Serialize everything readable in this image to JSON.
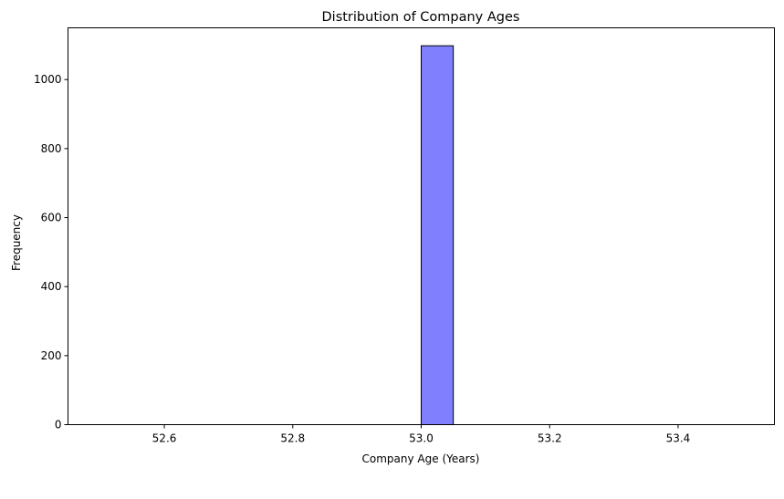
{
  "chart_data": {
    "type": "bar",
    "title": "Distribution of Company Ages",
    "xlabel": "Company Age (Years)",
    "ylabel": "Frequency",
    "xlim": [
      52.45,
      53.55
    ],
    "ylim": [
      0,
      1150
    ],
    "x_ticks": [
      52.6,
      52.8,
      53.0,
      53.2,
      53.4
    ],
    "x_tick_labels": [
      "52.6",
      "52.8",
      "53.0",
      "53.2",
      "53.4"
    ],
    "y_ticks": [
      0,
      200,
      400,
      600,
      800,
      1000
    ],
    "y_tick_labels": [
      "0",
      "200",
      "400",
      "600",
      "800",
      "1000"
    ],
    "bins": [
      {
        "x0": 52.5,
        "x1": 52.55,
        "count": 0
      },
      {
        "x0": 52.55,
        "x1": 52.6,
        "count": 0
      },
      {
        "x0": 52.6,
        "x1": 52.65,
        "count": 0
      },
      {
        "x0": 52.65,
        "x1": 52.7,
        "count": 0
      },
      {
        "x0": 52.7,
        "x1": 52.75,
        "count": 0
      },
      {
        "x0": 52.75,
        "x1": 52.8,
        "count": 0
      },
      {
        "x0": 52.8,
        "x1": 52.85,
        "count": 0
      },
      {
        "x0": 52.85,
        "x1": 52.9,
        "count": 0
      },
      {
        "x0": 52.9,
        "x1": 52.95,
        "count": 0
      },
      {
        "x0": 52.95,
        "x1": 53.0,
        "count": 0
      },
      {
        "x0": 53.0,
        "x1": 53.05,
        "count": 1098
      },
      {
        "x0": 53.05,
        "x1": 53.1,
        "count": 0
      },
      {
        "x0": 53.1,
        "x1": 53.15,
        "count": 0
      },
      {
        "x0": 53.15,
        "x1": 53.2,
        "count": 0
      },
      {
        "x0": 53.2,
        "x1": 53.25,
        "count": 0
      },
      {
        "x0": 53.25,
        "x1": 53.3,
        "count": 0
      },
      {
        "x0": 53.3,
        "x1": 53.35,
        "count": 0
      },
      {
        "x0": 53.35,
        "x1": 53.4,
        "count": 0
      },
      {
        "x0": 53.4,
        "x1": 53.45,
        "count": 0
      },
      {
        "x0": 53.45,
        "x1": 53.5,
        "count": 0
      }
    ],
    "bar_color": "#8080ff",
    "edge_color": "#000000",
    "grid": false,
    "legend": "none"
  }
}
